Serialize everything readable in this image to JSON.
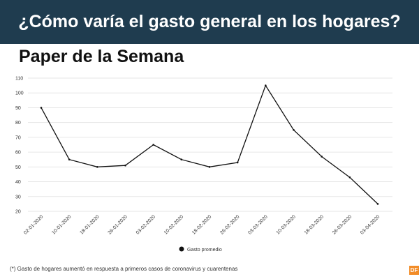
{
  "header": {
    "title": "¿Cómo varía el gasto general en los hogares?",
    "subtitle": "Paper de la Semana"
  },
  "chart_data": {
    "type": "line",
    "title": "",
    "xlabel": "",
    "ylabel": "",
    "x": [
      "02-01-2020",
      "10-01-2020",
      "18-01-2020",
      "26-01-2020",
      "03-02-2020",
      "10-02-2020",
      "18-02-2020",
      "26-02-2020",
      "03-03-2020",
      "10-03-2020",
      "18-03-2020",
      "26-03-2020",
      "03-04-2020"
    ],
    "series": [
      {
        "name": "Gasto promedio",
        "values": [
          90,
          55,
          50,
          51,
          65,
          55,
          50,
          53,
          105,
          75,
          57,
          43,
          25
        ]
      }
    ],
    "ylim": [
      20,
      110
    ],
    "yticks": [
      20,
      30,
      40,
      50,
      60,
      70,
      80,
      90,
      100,
      110
    ],
    "grid": true,
    "legend_position": "bottom-center",
    "colors": {
      "line": "#111111",
      "grid": "#e6e6e6",
      "banner": "#1f3c4f",
      "logo": "#f28c28"
    }
  },
  "footer": {
    "note": "(*) Gasto de hogares aumentó en respuesta a primeros casos de coronavirus y cuarentenas",
    "logo_text": "DF"
  }
}
